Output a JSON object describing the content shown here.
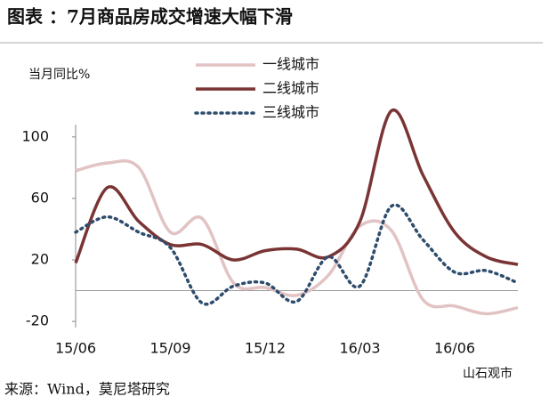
{
  "chart_data": {
    "type": "line",
    "title": "图表 ：7月商品房成交增速大幅下滑",
    "y_label": "当月同比%",
    "source": "来源：Wind，莫尼塔研究",
    "watermark": "山石观市",
    "categories": [
      "15/06",
      null,
      null,
      "15/09",
      null,
      null,
      "15/12",
      null,
      null,
      "16/03",
      null,
      null,
      "16/06",
      null,
      null
    ],
    "series": [
      {
        "name": "一线城市",
        "color": "#e2c3c4",
        "style": "solid",
        "values": [
          78,
          83,
          80,
          38,
          47,
          5,
          2,
          -3,
          10,
          42,
          39,
          -6,
          -10,
          -15,
          -11
        ]
      },
      {
        "name": "二线城市",
        "color": "#7a3434",
        "style": "solid",
        "values": [
          18,
          67,
          45,
          30,
          30,
          20,
          26,
          27,
          22,
          45,
          117,
          75,
          38,
          22,
          17
        ]
      },
      {
        "name": "三线城市",
        "color": "#2e4c6c",
        "style": "dotted",
        "values": [
          38,
          48,
          38,
          28,
          -8,
          3,
          5,
          -7,
          22,
          3,
          55,
          33,
          12,
          13,
          5
        ]
      }
    ],
    "ylim": [
      -24,
      108
    ],
    "yticks": [
      100,
      60,
      20,
      -20
    ]
  }
}
